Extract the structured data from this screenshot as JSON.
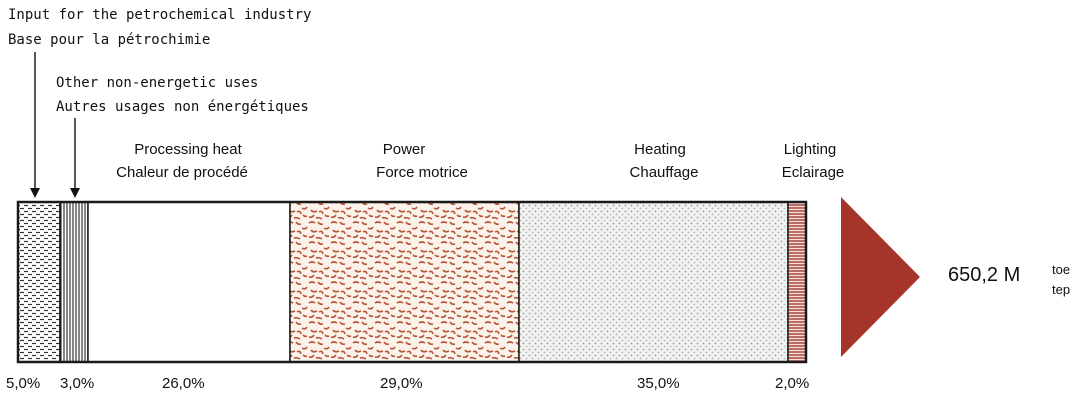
{
  "annotations": {
    "petrochem_en": "Input for the petrochemical industry",
    "petrochem_fr": "Base pour la pétrochimie",
    "nonenergetic_en": "Other non-energetic uses",
    "nonenergetic_fr": "Autres usages non énergétiques"
  },
  "segments": [
    {
      "label_en": "",
      "label_fr": "",
      "percent": "5,0%",
      "share": 5.0,
      "fill": "brick-hatch"
    },
    {
      "label_en": "",
      "label_fr": "",
      "percent": "3,0%",
      "share": 3.0,
      "fill": "vertical-lines"
    },
    {
      "label_en": "Processing heat",
      "label_fr": "Chaleur de procédé",
      "percent": "26,0%",
      "share": 26.0,
      "fill": "white"
    },
    {
      "label_en": "Power",
      "label_fr": "Force motrice",
      "percent": "29,0%",
      "share": 29.0,
      "fill": "speckle-brown"
    },
    {
      "label_en": "Heating",
      "label_fr": "Chauffage",
      "percent": "35,0%",
      "share": 35.0,
      "fill": "dot-grey"
    },
    {
      "label_en": "Lighting",
      "label_fr": "Eclairage",
      "percent": "2,0%",
      "share": 2.0,
      "fill": "horizontal-lines"
    }
  ],
  "total": {
    "value": "650,2 M",
    "unit_en": "toe",
    "unit_fr": "tep"
  },
  "colors": {
    "outline": "#1a1a1a",
    "arrow": "#a5352a",
    "speckle": "#b5573a",
    "grey_dots": "#9a9a9a"
  }
}
